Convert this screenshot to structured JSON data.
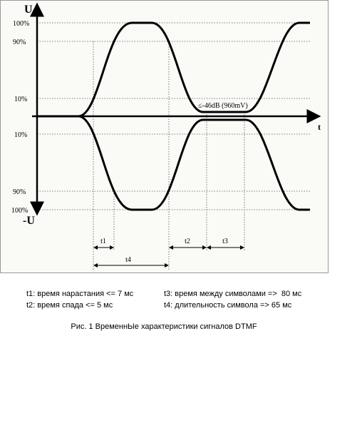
{
  "axes": {
    "y_label": "U",
    "y_neg_label": "-U",
    "x_label": "t"
  },
  "levels": [
    "100%",
    "90%",
    "10%",
    "10%",
    "90%",
    "100%"
  ],
  "annotation": "≤-46dB (960mV)",
  "intervals": [
    "t1",
    "t2",
    "t3",
    "t4"
  ],
  "legend": [
    "t1: время нарастания <= 7 мс",
    "t3: время между символами =>  80 мс",
    "t2: время спада <= 5 мс",
    "t4: длительность символа => 65 мс"
  ],
  "caption": "Рис. 1 ВременнЫе характеристики сигналов DTMF"
}
